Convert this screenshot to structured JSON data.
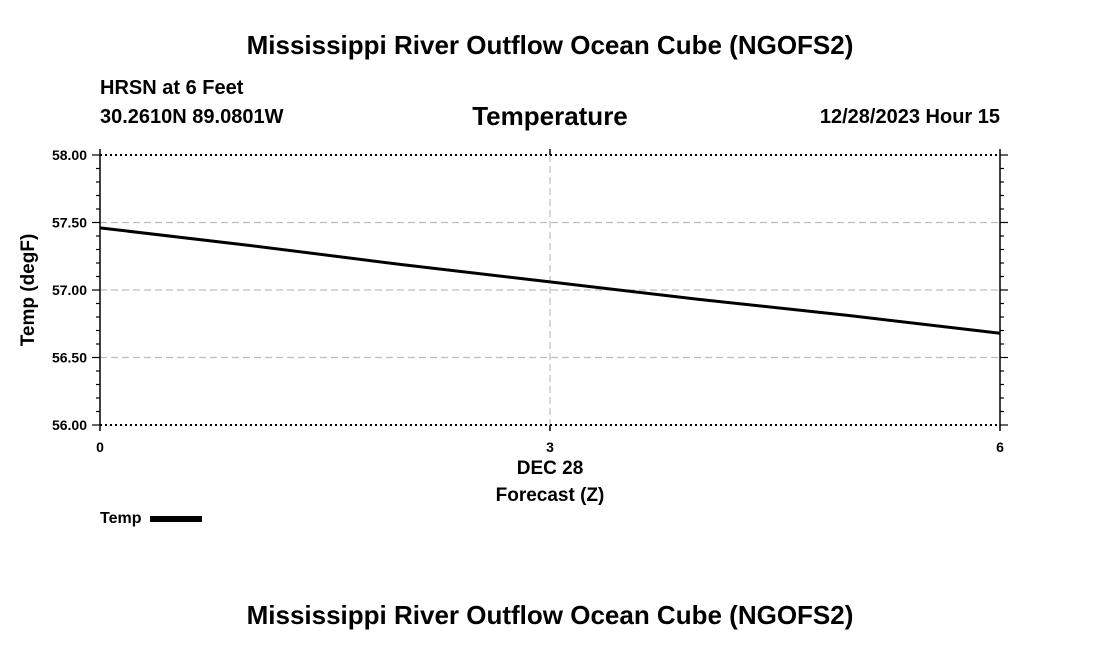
{
  "header": {
    "title": "Mississippi River Outflow Ocean Cube (NGOFS2)",
    "station": "HRSN at 6 Feet",
    "coords": "30.2610N  89.0801W",
    "chart_title": "Temperature",
    "datetime": "12/28/2023 Hour 15"
  },
  "footer": {
    "title": "Mississippi River Outflow Ocean Cube (NGOFS2)"
  },
  "chart_data": {
    "type": "line",
    "title": "Temperature",
    "xlabel": "Forecast (Z)",
    "ylabel": "Temp (degF)",
    "date_label": "DEC 28",
    "xlim": [
      0,
      6
    ],
    "ylim": [
      56.0,
      58.0
    ],
    "x_ticks": [
      0,
      3,
      6
    ],
    "x_tick_labels": [
      "0",
      "3",
      "6"
    ],
    "y_ticks": [
      56.0,
      56.5,
      57.0,
      57.5,
      58.0
    ],
    "y_tick_labels": [
      "56.00",
      "56.50",
      "57.00",
      "57.50",
      "58.00"
    ],
    "grid": true,
    "legend": "bottom-left",
    "series": [
      {
        "name": "Temp",
        "color": "#000000",
        "x": [
          0,
          1,
          2,
          3,
          4,
          5,
          6
        ],
        "y": [
          57.46,
          57.33,
          57.19,
          57.06,
          56.93,
          56.81,
          56.68
        ]
      }
    ]
  }
}
